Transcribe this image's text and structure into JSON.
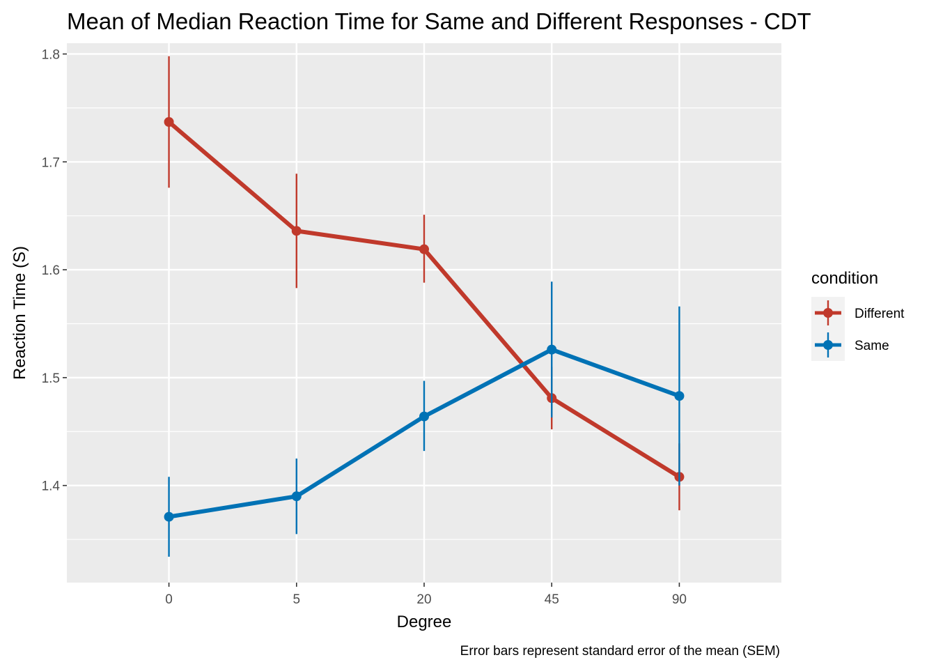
{
  "chart_data": {
    "type": "line",
    "title": "Mean of Median Reaction Time for Same and Different Responses - CDT",
    "xlabel": "Degree",
    "ylabel": "Reaction Time (S)",
    "caption": "Error bars represent standard error of the mean (SEM)",
    "categories": [
      "0",
      "5",
      "20",
      "45",
      "90"
    ],
    "ylim": [
      1.31,
      1.81
    ],
    "yticks": [
      1.4,
      1.5,
      1.6,
      1.7,
      1.8
    ],
    "ytick_labels": [
      "1.4",
      "1.5",
      "1.6",
      "1.7",
      "1.8"
    ],
    "grid": true,
    "x_axis": "categorical",
    "legend": {
      "title": "condition",
      "position": "right"
    },
    "series": [
      {
        "name": "Different",
        "color": "#C0392B",
        "values": [
          1.737,
          1.636,
          1.619,
          1.481,
          1.408
        ],
        "error_low": [
          1.676,
          1.583,
          1.588,
          1.452,
          1.377
        ],
        "error_high": [
          1.798,
          1.689,
          1.651,
          1.51,
          1.439
        ]
      },
      {
        "name": "Same",
        "color": "#0072B5",
        "values": [
          1.371,
          1.39,
          1.464,
          1.526,
          1.483
        ],
        "error_low": [
          1.334,
          1.355,
          1.432,
          1.463,
          1.4
        ],
        "error_high": [
          1.408,
          1.425,
          1.497,
          1.589,
          1.566
        ]
      }
    ]
  }
}
